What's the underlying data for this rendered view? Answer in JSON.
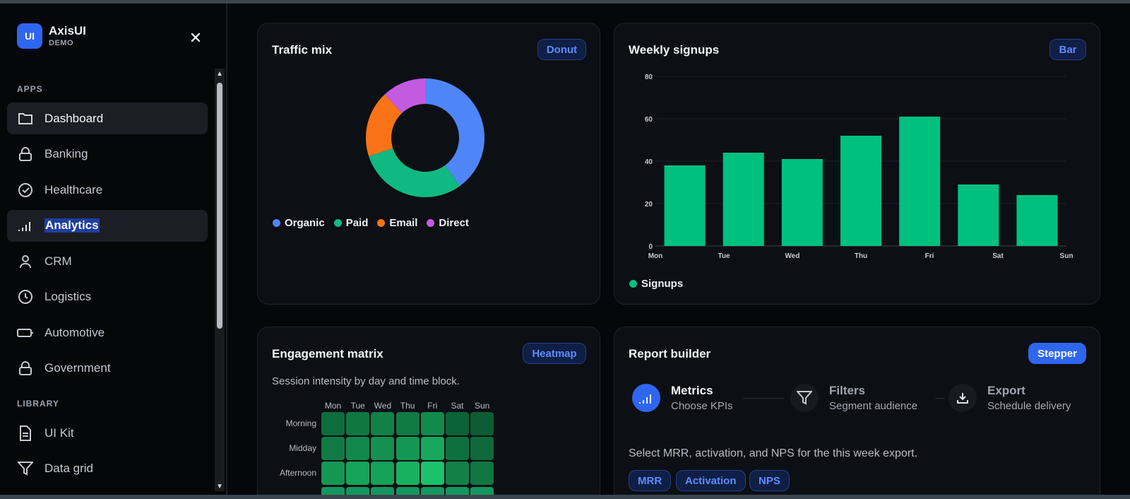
{
  "brand": {
    "logo": "UI",
    "name": "AxisUI",
    "sub": "DEMO"
  },
  "sidebar": {
    "close_icon": "close-icon",
    "apps_label": "APPS",
    "library_label": "LIBRARY",
    "apps": [
      {
        "label": "Dashboard",
        "icon": "folder-icon",
        "active": true
      },
      {
        "label": "Banking",
        "icon": "lock-icon"
      },
      {
        "label": "Healthcare",
        "icon": "check-circle-icon"
      },
      {
        "label": "Analytics",
        "icon": "signal-bars-icon",
        "active": true,
        "selected": true
      },
      {
        "label": "CRM",
        "icon": "user-icon"
      },
      {
        "label": "Logistics",
        "icon": "clock-icon"
      },
      {
        "label": "Automotive",
        "icon": "battery-icon"
      },
      {
        "label": "Government",
        "icon": "lock-icon"
      }
    ],
    "library": [
      {
        "label": "UI Kit",
        "icon": "document-icon"
      },
      {
        "label": "Data grid",
        "icon": "filter-icon"
      }
    ]
  },
  "traffic": {
    "title": "Traffic mix",
    "badge": "Donut",
    "legend": [
      "Organic",
      "Paid",
      "Email",
      "Direct"
    ]
  },
  "signups": {
    "title": "Weekly signups",
    "badge": "Bar",
    "legend": "Signups"
  },
  "engagement": {
    "title": "Engagement matrix",
    "badge": "Heatmap",
    "subtitle": "Session intensity by day and time block.",
    "columns": [
      "Mon",
      "Tue",
      "Wed",
      "Thu",
      "Fri",
      "Sat",
      "Sun"
    ],
    "rows": [
      "Morning",
      "Midday",
      "Afternoon"
    ]
  },
  "report": {
    "title": "Report builder",
    "badge": "Stepper",
    "steps": [
      {
        "title": "Metrics",
        "sub": "Choose KPIs",
        "icon": "signal-bars-icon",
        "active": true
      },
      {
        "title": "Filters",
        "sub": "Segment audience",
        "icon": "filter-icon"
      },
      {
        "title": "Export",
        "sub": "Schedule delivery",
        "icon": "download-icon"
      }
    ],
    "description": "Select MRR, activation, and NPS for the this week export.",
    "tags": [
      "MRR",
      "Activation",
      "NPS"
    ]
  },
  "chart_data": [
    {
      "type": "pie",
      "title": "Traffic mix",
      "categories": [
        "Organic",
        "Paid",
        "Email",
        "Direct"
      ],
      "values": [
        40,
        30,
        18,
        12
      ],
      "colors": [
        "#4f86f7",
        "#10b981",
        "#f97316",
        "#c35be0"
      ]
    },
    {
      "type": "bar",
      "title": "Weekly signups",
      "categories": [
        "Mon",
        "Tue",
        "Wed",
        "Thu",
        "Fri",
        "Sat",
        "Sun"
      ],
      "series": [
        {
          "name": "Signups",
          "values": [
            38,
            44,
            41,
            52,
            61,
            29,
            24
          ]
        }
      ],
      "ylim": [
        0,
        80
      ],
      "yticks": [
        0,
        20,
        40,
        60,
        80
      ],
      "grid": true,
      "color": "#00c07f"
    },
    {
      "type": "heatmap",
      "title": "Engagement matrix",
      "x": [
        "Mon",
        "Tue",
        "Wed",
        "Thu",
        "Fri",
        "Sat",
        "Sun"
      ],
      "y": [
        "Morning",
        "Midday",
        "Afternoon"
      ],
      "values": [
        [
          0.3,
          0.38,
          0.45,
          0.4,
          0.52,
          0.22,
          0.18
        ],
        [
          0.4,
          0.5,
          0.58,
          0.62,
          0.75,
          0.32,
          0.28
        ],
        [
          0.62,
          0.72,
          0.7,
          0.82,
          0.95,
          0.45,
          0.38
        ]
      ]
    }
  ]
}
